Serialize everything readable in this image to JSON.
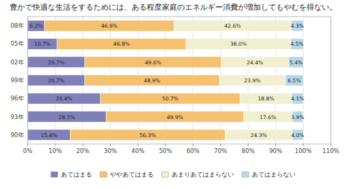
{
  "chart_data": {
    "type": "bar",
    "orientation": "horizontal",
    "stacked": true,
    "title": "豊かで快適な生活をするためには、ある程度家庭のエネルギー消費が増加してもやむを得ない。",
    "categories": [
      "08年",
      "05年",
      "02年",
      "99年",
      "96年",
      "93年",
      "90年"
    ],
    "series": [
      {
        "name": "あてはまる",
        "color": "#8080b8",
        "values": [
          6.2,
          10.7,
          20.7,
          20.7,
          26.4,
          28.5,
          15.4
        ],
        "value_labels": [
          "6.2%",
          "10.7%",
          "20.7%",
          "20.7%",
          "26.4%",
          "28.5%",
          "15.4%"
        ]
      },
      {
        "name": "ややあてはまる",
        "color": "#f5c070",
        "values": [
          46.9,
          46.8,
          49.6,
          48.9,
          50.7,
          49.9,
          56.3
        ],
        "value_labels": [
          "46.9%",
          "46.8%",
          "49.6%",
          "48.9%",
          "50.7%",
          "49.9%",
          "56.3%"
        ]
      },
      {
        "name": "あまりあてはまらない",
        "color": "#f0f0d0",
        "values": [
          42.6,
          38.0,
          24.4,
          23.9,
          18.8,
          17.6,
          24.3
        ],
        "value_labels": [
          "42.6%",
          "38.0%",
          "24.4%",
          "23.9%",
          "18.8%",
          "17.6%",
          "24.3%"
        ]
      },
      {
        "name": "あてはまらない",
        "color": "#b8d8e8",
        "values": [
          4.3,
          4.5,
          5.4,
          6.5,
          4.1,
          3.9,
          4.0
        ],
        "value_labels": [
          "4.3%",
          "4.5%",
          "5.4%",
          "6.5%",
          "4.1%",
          "3.9%",
          "4.0%"
        ]
      }
    ],
    "xlim": [
      0,
      110
    ],
    "xticks": [
      {
        "value": 0,
        "label": "0%"
      },
      {
        "value": 10,
        "label": "10%"
      },
      {
        "value": 20,
        "label": "20%"
      },
      {
        "value": 30,
        "label": "30%"
      },
      {
        "value": 40,
        "label": "40%"
      },
      {
        "value": 50,
        "label": "50%"
      },
      {
        "value": 60,
        "label": "60%"
      },
      {
        "value": 70,
        "label": "70%"
      },
      {
        "value": 80,
        "label": "80%"
      },
      {
        "value": 90,
        "label": "90%"
      },
      {
        "value": 100,
        "label": "100%"
      },
      {
        "value": 110,
        "label": "110%"
      }
    ],
    "grid": true,
    "data_labels": true,
    "legend": "bottom"
  }
}
